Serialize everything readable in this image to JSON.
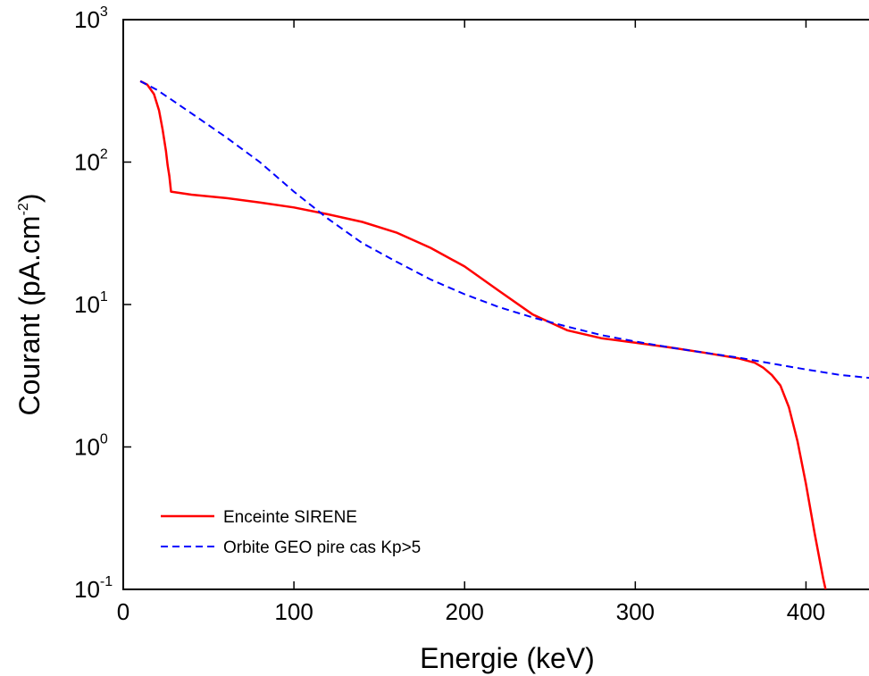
{
  "chart_data": {
    "type": "line",
    "title": "",
    "xlabel": "Energie (keV)",
    "ylabel": "Courant (pA.cm",
    "ylabel_exponent": "-2",
    "ylabel_suffix": ")",
    "xlim": [
      0,
      450
    ],
    "ylim": [
      0.1,
      1000
    ],
    "yscale": "log",
    "grid": false,
    "legend_position": "bottom-left",
    "x_ticks": [
      {
        "value": 0,
        "label": "0"
      },
      {
        "value": 100,
        "label": "100"
      },
      {
        "value": 200,
        "label": "200"
      },
      {
        "value": 300,
        "label": "300"
      },
      {
        "value": 400,
        "label": "400"
      }
    ],
    "y_ticks": [
      {
        "value": 1000,
        "base": "10",
        "exp": "3"
      },
      {
        "value": 100,
        "base": "10",
        "exp": "2"
      },
      {
        "value": 10,
        "base": "10",
        "exp": "1"
      },
      {
        "value": 1,
        "base": "10",
        "exp": "0"
      },
      {
        "value": 0.1,
        "base": "10",
        "exp": "-1"
      }
    ],
    "series": [
      {
        "name": "Enceinte SIRENE",
        "color": "#ff0000",
        "dash": "solid",
        "x": [
          10,
          14,
          18,
          21,
          23,
          25,
          26,
          27,
          27.5,
          28,
          40,
          60,
          80,
          100,
          120,
          140,
          160,
          180,
          200,
          220,
          240,
          260,
          280,
          300,
          320,
          340,
          360,
          370,
          375,
          380,
          385,
          390,
          395,
          400,
          405,
          410,
          411.5
        ],
        "y": [
          370,
          350,
          300,
          230,
          170,
          120,
          95,
          80,
          70,
          62,
          59,
          56,
          52,
          48,
          43,
          38,
          32,
          25,
          18.5,
          12.5,
          8.5,
          6.6,
          5.8,
          5.4,
          5.0,
          4.6,
          4.2,
          3.9,
          3.6,
          3.2,
          2.7,
          1.9,
          1.1,
          0.55,
          0.25,
          0.12,
          0.1
        ]
      },
      {
        "name": "Orbite GEO pire cas Kp>5",
        "color": "#0000ff",
        "dash": "dashed",
        "x": [
          10,
          20,
          40,
          60,
          80,
          100,
          120,
          140,
          160,
          180,
          200,
          220,
          240,
          260,
          280,
          300,
          320,
          340,
          360,
          380,
          400,
          420,
          450
        ],
        "y": [
          370,
          320,
          220,
          150,
          100,
          62,
          40,
          27,
          20,
          15,
          11.8,
          9.6,
          8.1,
          7.0,
          6.1,
          5.5,
          5.0,
          4.6,
          4.25,
          3.85,
          3.5,
          3.2,
          2.95
        ]
      }
    ]
  }
}
